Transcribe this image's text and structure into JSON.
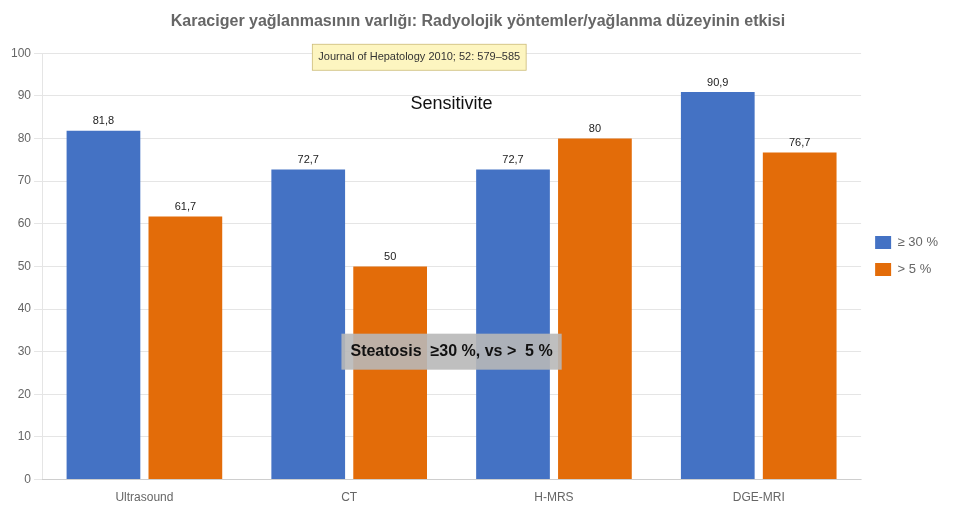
{
  "chart_data": {
    "type": "bar",
    "title": "Karaciger yağlanmasının varlığı: Radyolojik yöntemler/yağlanma düzeyinin etkisi",
    "categories": [
      "Ultrasound",
      "CT",
      "H-MRS",
      "DGE-MRI"
    ],
    "series": [
      {
        "name": "≥ 30 %",
        "color": "#4472C4",
        "values": [
          81.8,
          72.7,
          72.7,
          90.9
        ],
        "value_labels": [
          "81,8",
          "72,7",
          "72,7",
          "90,9"
        ]
      },
      {
        "name": "> 5 %",
        "color": "#E36C09",
        "values": [
          61.7,
          50.0,
          80.0,
          76.7
        ],
        "value_labels": [
          "61,7",
          "50",
          "80",
          "76,7"
        ]
      }
    ],
    "ylim": [
      0,
      100
    ],
    "yticks": [
      0,
      10,
      20,
      30,
      40,
      50,
      60,
      70,
      80,
      90,
      100
    ],
    "grid": true,
    "legend": "right",
    "data_labels": true,
    "annotations": [
      "Journal of Hepatology 2010; 52: 579–585",
      "Sensitivite",
      "Steatosis  ≥30 %, vs >  5 %"
    ]
  }
}
